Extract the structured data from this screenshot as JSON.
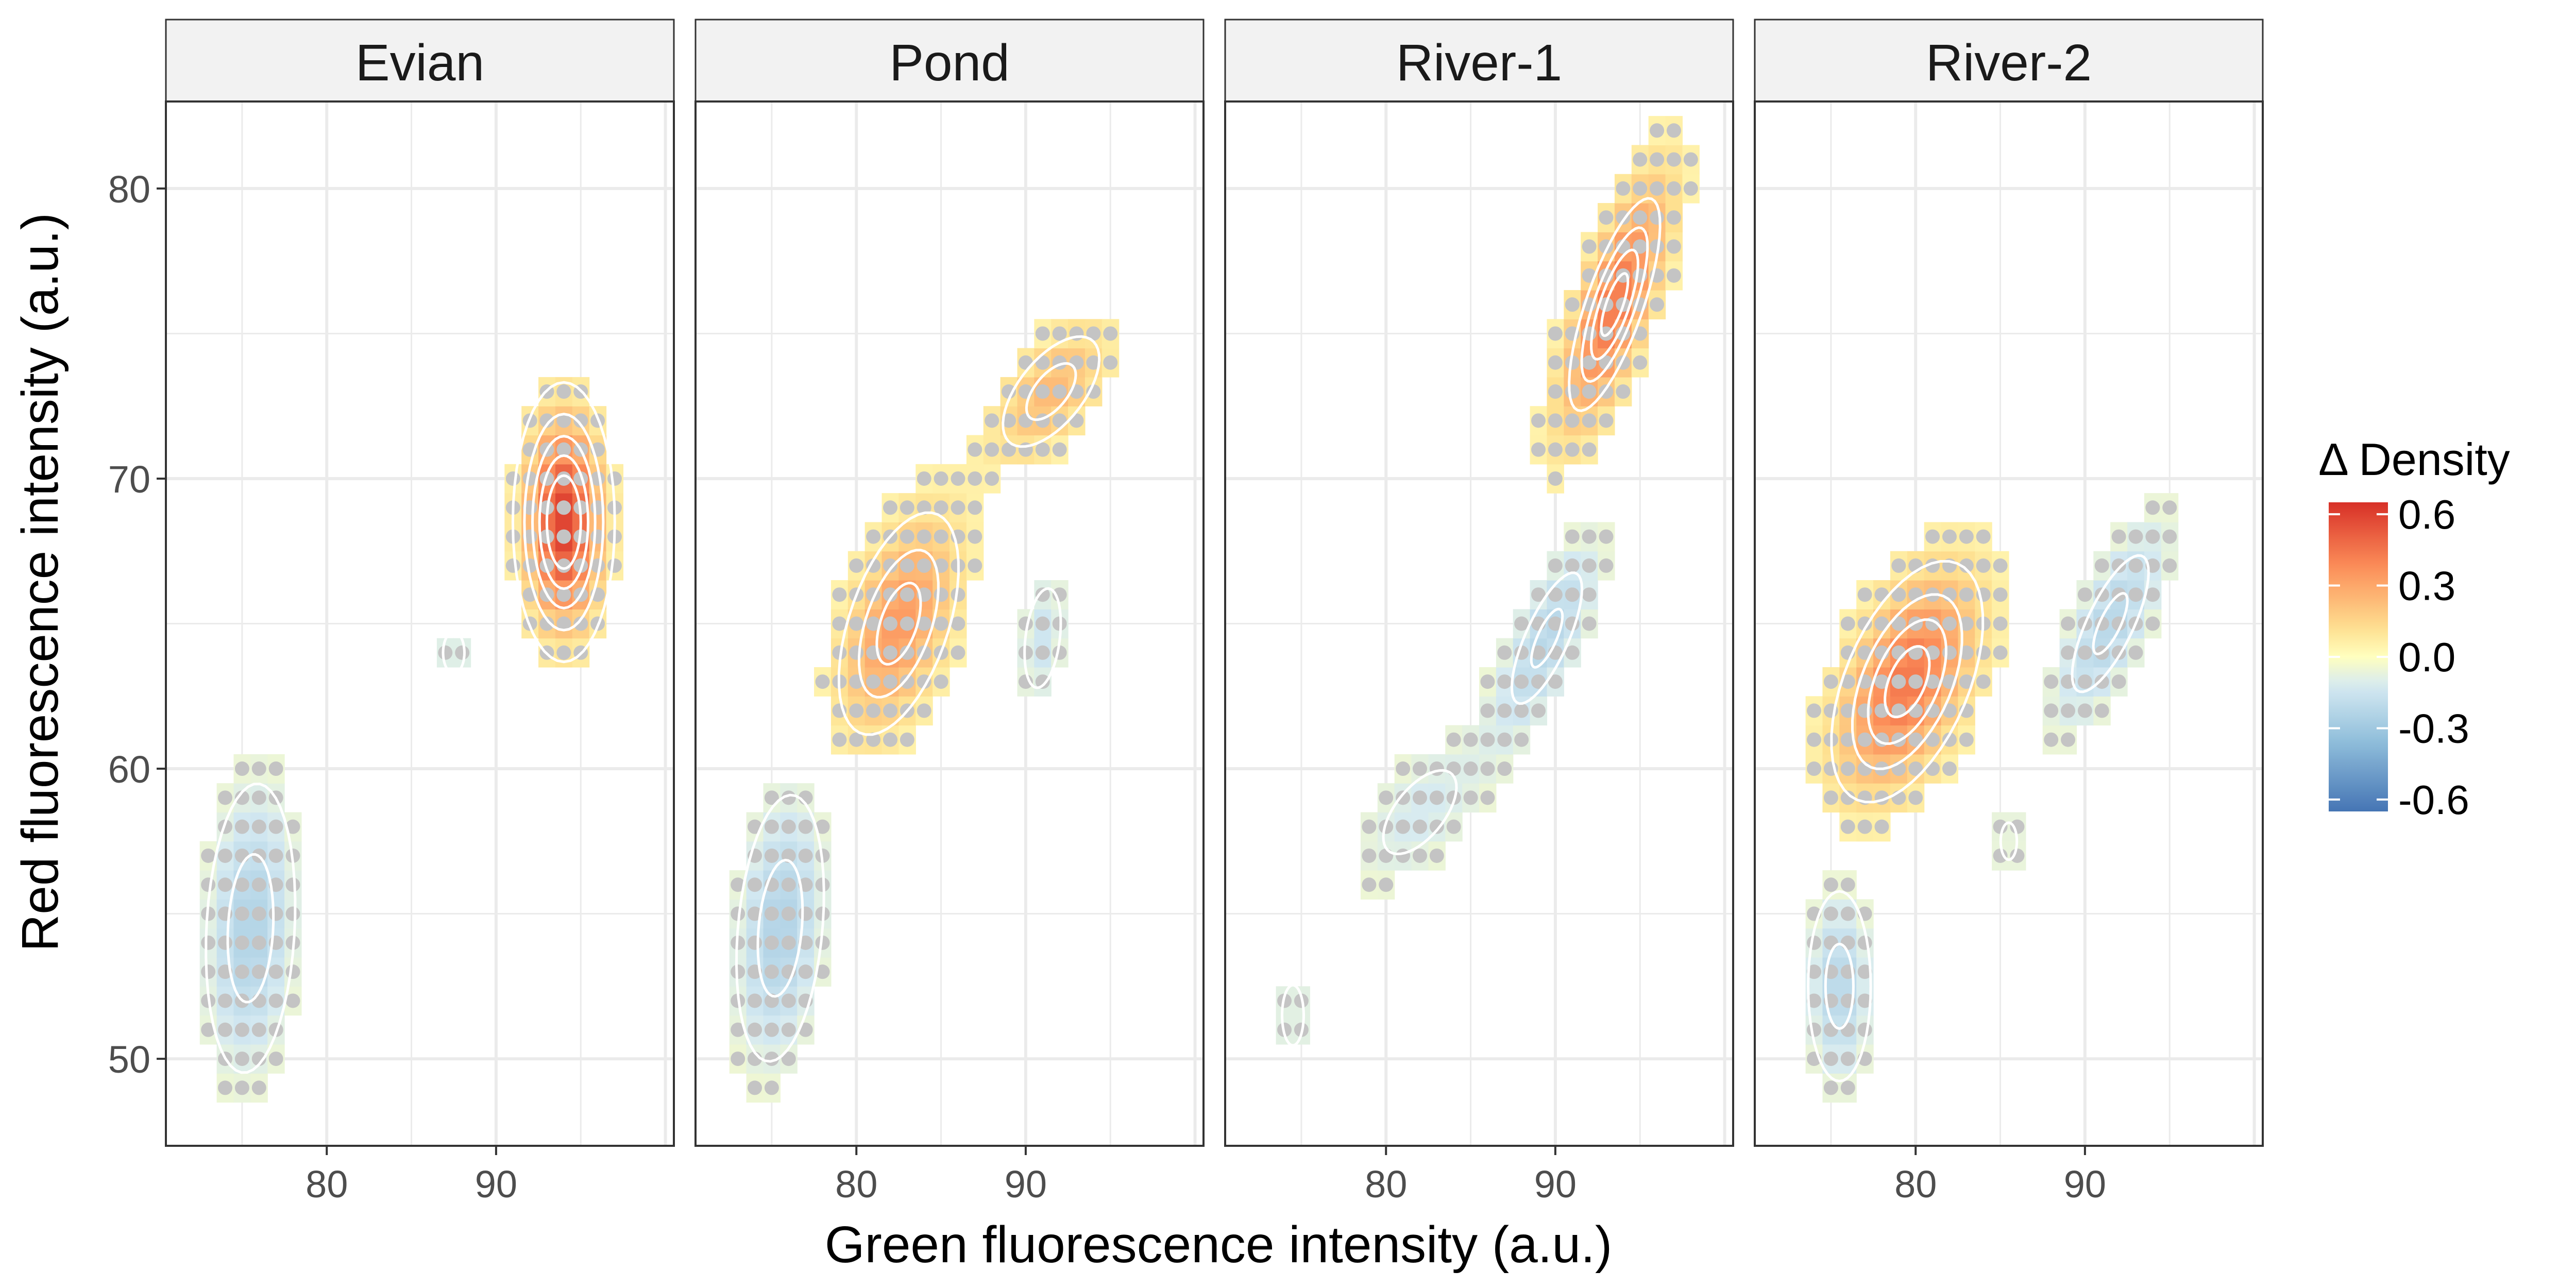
{
  "chart_data": {
    "type": "heatmap",
    "title": "",
    "xlabel": "Green fluorescence intensity (a.u.)",
    "ylabel": "Red fluorescence intensity (a.u.)",
    "xlim": [
      70.5,
      100.5
    ],
    "ylim": [
      47,
      83
    ],
    "x_ticks": [
      "80",
      "90"
    ],
    "y_ticks": [
      "50",
      "60",
      "70",
      "80"
    ],
    "grid": true,
    "legend": {
      "title": "Δ Density",
      "position": "right",
      "ticks": [
        "0.6",
        "0.3",
        "0.0",
        "-0.3",
        "-0.6"
      ],
      "range": [
        -0.65,
        0.65
      ]
    },
    "colors": {
      "neg_strong": "#4575b4",
      "neg_mid": "#91bfdb",
      "neg_light": "#d6eaf2",
      "zero": "#ffffbf",
      "pos_light": "#fee090",
      "pos_mid": "#fc8d59",
      "pos_strong": "#d73027",
      "dot": "#c4c4c4",
      "contour": "#ffffff",
      "grid": "#ebebeb",
      "strip": "#f2f2f2"
    },
    "panels": [
      {
        "name": "Evian",
        "clusters": [
          {
            "cx": 94,
            "cy": 68.5,
            "sx": 1.5,
            "sy": 2.4,
            "rho": 0.0,
            "amp": 0.6
          },
          {
            "cx": 75.5,
            "cy": 54.5,
            "sx": 1.8,
            "sy": 3.4,
            "rho": 0.15,
            "amp": -0.24
          },
          {
            "cx": 87.5,
            "cy": 64,
            "sx": 0.7,
            "sy": 0.8,
            "rho": 0.0,
            "amp": -0.12
          }
        ]
      },
      {
        "name": "Pond",
        "clusters": [
          {
            "cx": 82.5,
            "cy": 65,
            "sx": 2.4,
            "sy": 2.6,
            "rho": 0.5,
            "amp": 0.34
          },
          {
            "cx": 91.5,
            "cy": 73,
            "sx": 2.4,
            "sy": 1.6,
            "rho": 0.6,
            "amp": 0.24
          },
          {
            "cx": 75.5,
            "cy": 54.5,
            "sx": 1.8,
            "sy": 3.2,
            "rho": 0.25,
            "amp": -0.24
          },
          {
            "cx": 91,
            "cy": 64.5,
            "sx": 1.0,
            "sy": 1.6,
            "rho": 0.3,
            "amp": -0.15
          }
        ]
      },
      {
        "name": "River-1",
        "clusters": [
          {
            "cx": 93.5,
            "cy": 76,
            "sx": 2.2,
            "sy": 3.0,
            "rho": 0.75,
            "amp": 0.44
          },
          {
            "cx": 89.5,
            "cy": 64.5,
            "sx": 2.2,
            "sy": 2.4,
            "rho": 0.75,
            "amp": -0.22
          },
          {
            "cx": 82,
            "cy": 58.5,
            "sx": 3.0,
            "sy": 2.0,
            "rho": 0.6,
            "amp": -0.12
          },
          {
            "cx": 74.5,
            "cy": 51.5,
            "sx": 0.8,
            "sy": 1.3,
            "rho": 0.0,
            "amp": -0.11
          }
        ]
      },
      {
        "name": "River-2",
        "clusters": [
          {
            "cx": 79.5,
            "cy": 63,
            "sx": 2.8,
            "sy": 2.6,
            "rho": 0.5,
            "amp": 0.44
          },
          {
            "cx": 91.5,
            "cy": 65,
            "sx": 2.4,
            "sy": 2.5,
            "rho": 0.75,
            "amp": -0.22
          },
          {
            "cx": 75.5,
            "cy": 52.5,
            "sx": 1.3,
            "sy": 2.3,
            "rho": 0.0,
            "amp": -0.22
          },
          {
            "cx": 85.5,
            "cy": 57.5,
            "sx": 0.6,
            "sy": 0.8,
            "rho": 0.0,
            "amp": -0.11
          }
        ]
      }
    ]
  }
}
